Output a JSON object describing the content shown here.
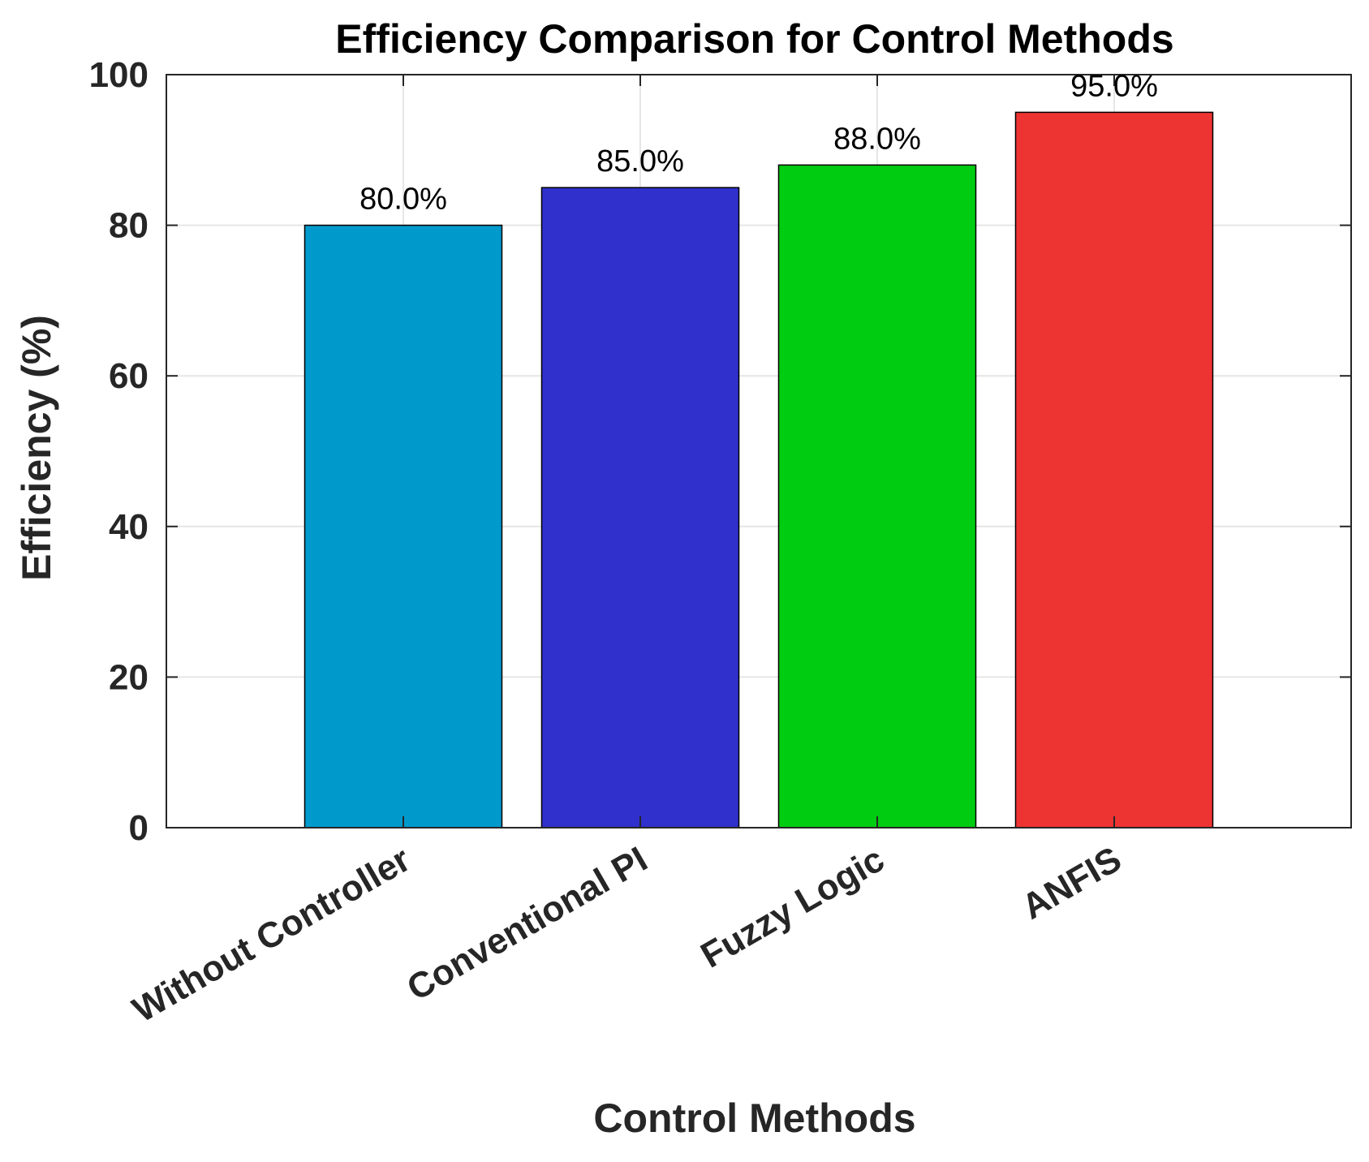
{
  "chart_data": {
    "type": "bar",
    "title": "Efficiency Comparison for Control Methods",
    "xlabel": "Control Methods",
    "ylabel": "Efficiency (%)",
    "categories": [
      "Without Controller",
      "Conventional PI",
      "Fuzzy Logic",
      "ANFIS"
    ],
    "values": [
      80,
      85,
      88,
      95
    ],
    "data_labels": [
      "80.0%",
      "85.0%",
      "88.0%",
      "95.0%"
    ],
    "colors": [
      "#0099CC",
      "#3030CC",
      "#00CC11",
      "#EE3333"
    ],
    "ylim": [
      0,
      100
    ],
    "yticks": [
      0,
      20,
      40,
      60,
      80,
      100
    ],
    "ytick_labels": [
      "0",
      "20",
      "40",
      "60",
      "80",
      "100"
    ],
    "grid": true
  }
}
